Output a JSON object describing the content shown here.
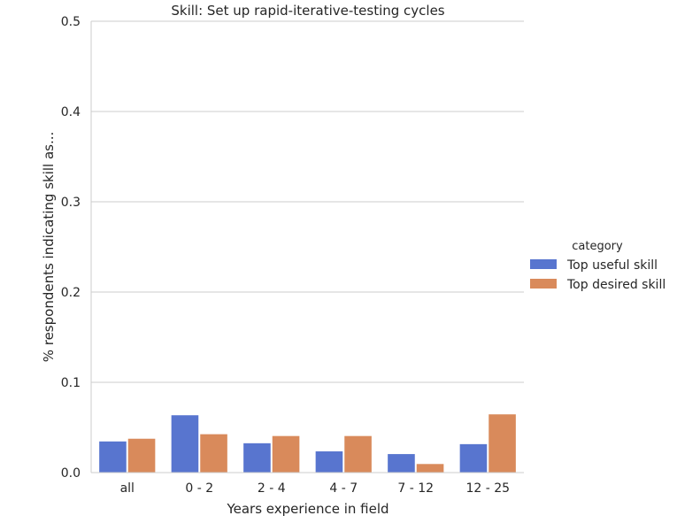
{
  "chart_data": {
    "type": "bar",
    "title": "Skill: Set up rapid-iterative-testing cycles",
    "xlabel": "Years experience in field",
    "ylabel": "% respondents indicating skill as...",
    "ylim": [
      0,
      0.5
    ],
    "yticks": [
      0.0,
      0.1,
      0.2,
      0.3,
      0.4,
      0.5
    ],
    "ytick_labels": [
      "0.0",
      "0.1",
      "0.2",
      "0.3",
      "0.4",
      "0.5"
    ],
    "categories": [
      "all",
      "0 - 2",
      "2 - 4",
      "4 - 7",
      "7 - 12",
      "12 - 25"
    ],
    "grid": true,
    "legend": {
      "title": "category",
      "placement": "right"
    },
    "series": [
      {
        "name": "Top useful skill",
        "color": "#5875cf",
        "values": [
          0.035,
          0.064,
          0.033,
          0.024,
          0.021,
          0.032
        ]
      },
      {
        "name": "Top desired skill",
        "color": "#d98a5b",
        "values": [
          0.038,
          0.043,
          0.041,
          0.041,
          0.01,
          0.065
        ]
      }
    ]
  }
}
